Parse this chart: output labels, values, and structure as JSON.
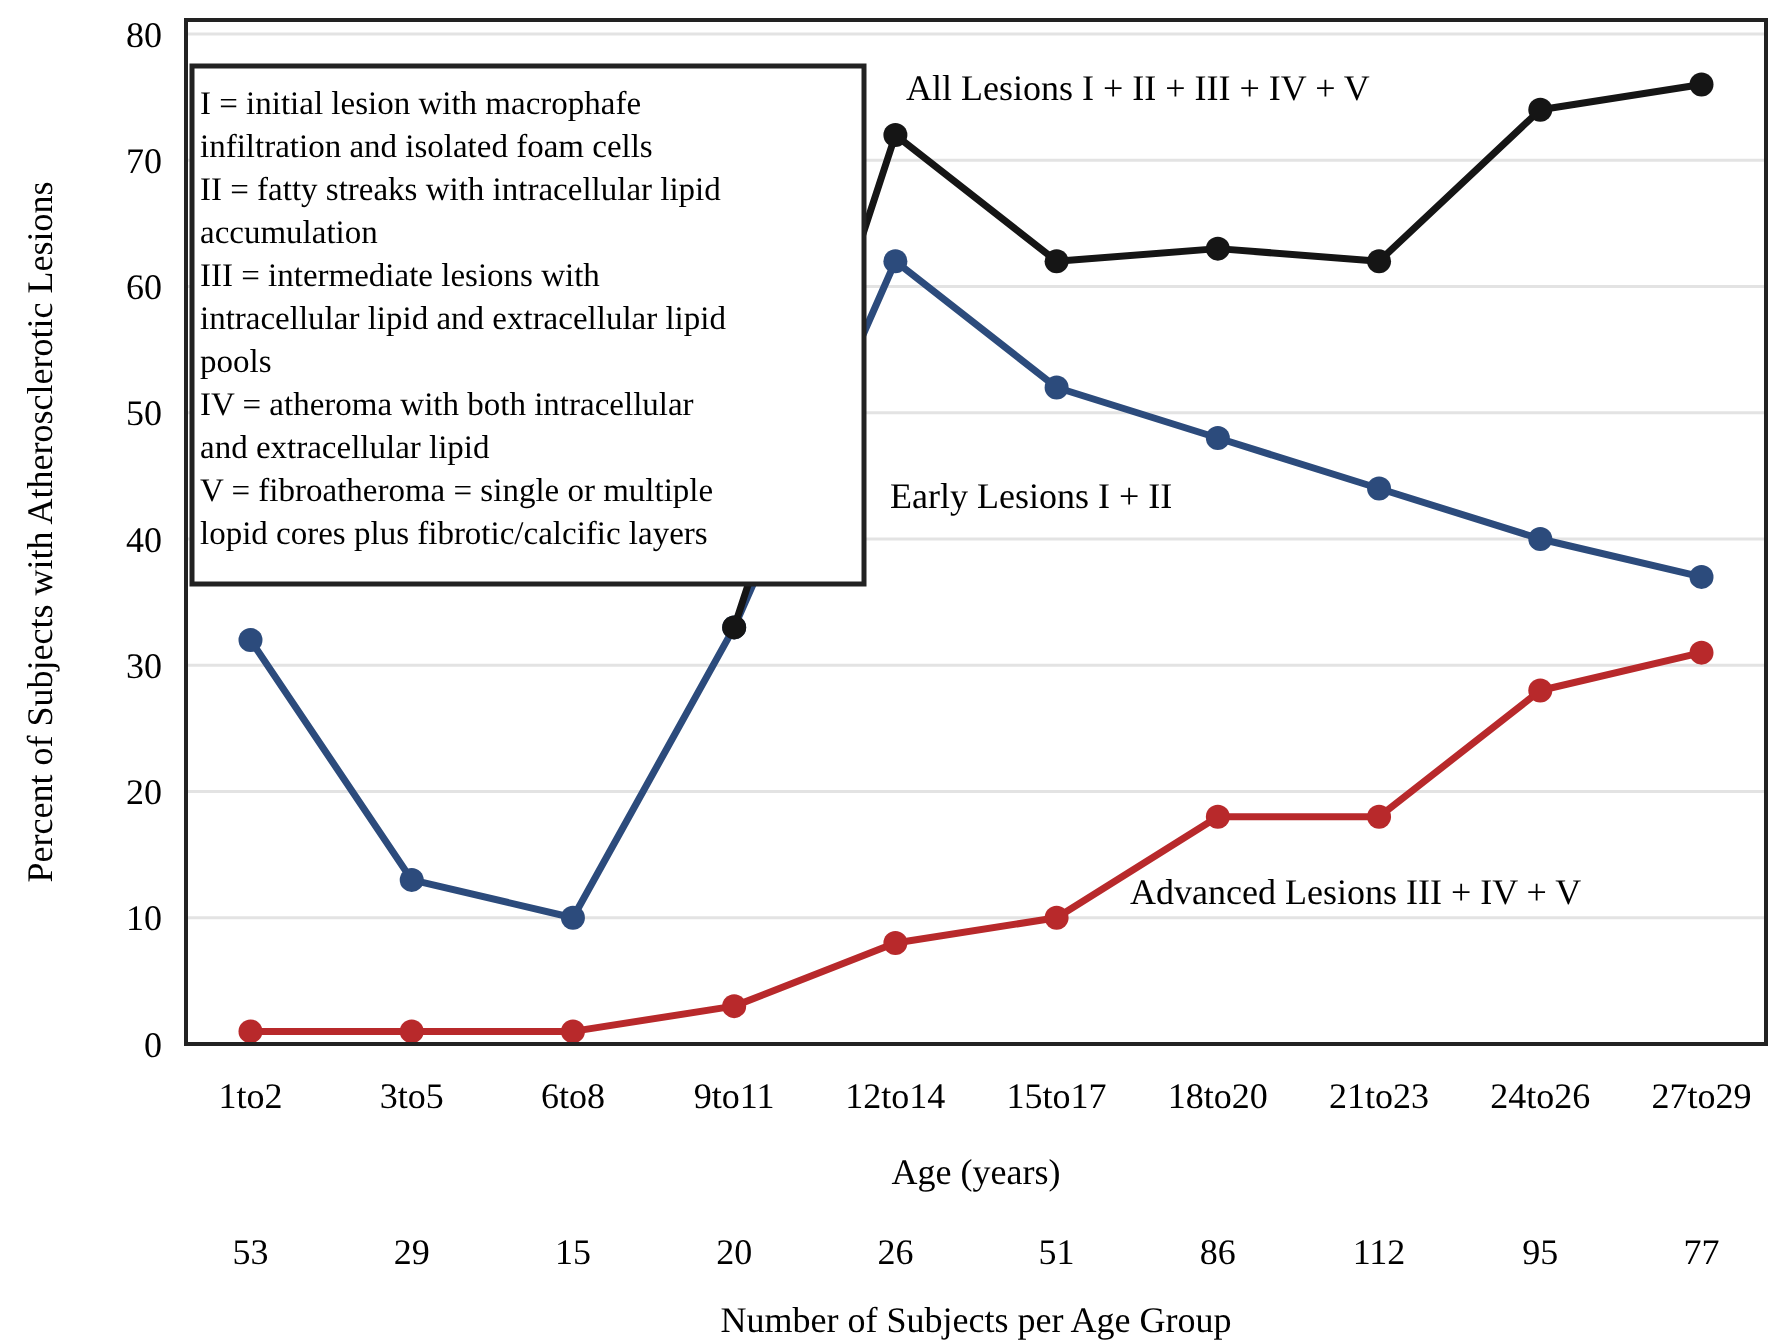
{
  "chart_data": {
    "type": "line",
    "xlabel": "Age (years)",
    "ylabel": "Percent of Subjects with Atherosclerotic Lesions",
    "categories": [
      "1to2",
      "3to5",
      "6to8",
      "9to11",
      "12to14",
      "15to17",
      "18to20",
      "21to23",
      "24to26",
      "27to29"
    ],
    "series": [
      {
        "name": "All Lesions   I + II + III + IV + V",
        "color": "#151515",
        "values": [
          null,
          null,
          null,
          33,
          72,
          62,
          63,
          62,
          74,
          76
        ]
      },
      {
        "name": "Early Lesions   I + II",
        "color": "#2c4b7c",
        "values": [
          32,
          13,
          10,
          33,
          62,
          52,
          48,
          44,
          40,
          37
        ]
      },
      {
        "name": "Advanced Lesions   III + IV + V",
        "color": "#b8292b",
        "values": [
          1,
          1,
          1,
          3,
          8,
          10,
          18,
          18,
          28,
          31
        ]
      }
    ],
    "ylim": [
      0,
      80
    ],
    "yticks": [
      0,
      10,
      20,
      30,
      40,
      50,
      60,
      70,
      80
    ],
    "grid": "y",
    "marker": "circle",
    "line_style": "solid",
    "annotations": [
      "I = initial lesion with macrophafe",
      "infiltration and isolated foam cells",
      "II = fatty streaks with intracellular lipid",
      "accumulation",
      "III = intermediate lesions with",
      "intracellular lipid and extracellular lipid",
      "pools",
      "IV = atheroma with both intracellular",
      "and extracellular lipid",
      "V = fibroatheroma = single or multiple",
      "lopid cores plus fibrotic/calcific layers",
      "53",
      "29",
      "15",
      "20",
      "26",
      "51",
      "86",
      "112",
      "95",
      "77",
      "Number of Subjects per Age Group"
    ]
  }
}
